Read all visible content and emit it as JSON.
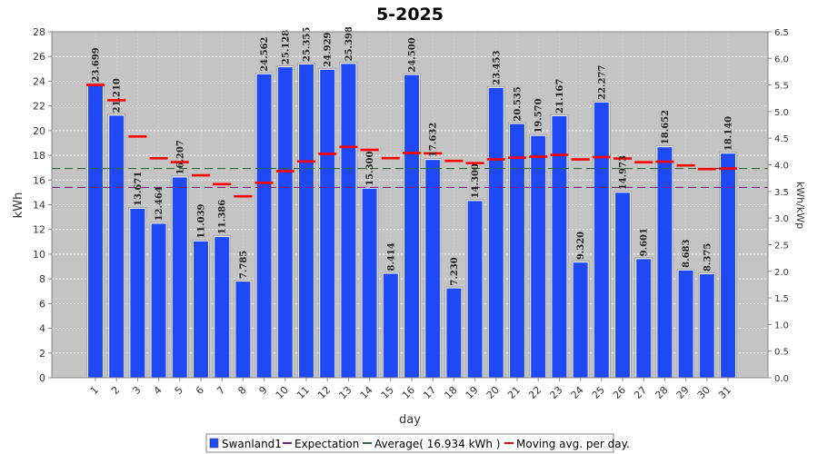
{
  "chart_data": {
    "type": "bar",
    "title": "5-2025",
    "xlabel": "day",
    "ylabel": "kWh",
    "y2label": "kWh/kWp",
    "ylim": [
      0,
      28
    ],
    "y_ticks": [
      0,
      2,
      4,
      6,
      8,
      10,
      12,
      14,
      16,
      18,
      20,
      22,
      24,
      26,
      28
    ],
    "y2lim": [
      0,
      6.5
    ],
    "y2_ticks": [
      "0.0",
      "0.5",
      "1.0",
      "1.5",
      "2.0",
      "2.5",
      "3.0",
      "3.5",
      "4.0",
      "4.5",
      "5.0",
      "5.5",
      "6.0",
      "6.5"
    ],
    "grid": true,
    "legend_position": "bottom",
    "categories": [
      "1",
      "2",
      "3",
      "4",
      "5",
      "6",
      "7",
      "8",
      "9",
      "10",
      "11",
      "12",
      "13",
      "14",
      "15",
      "16",
      "17",
      "18",
      "19",
      "20",
      "21",
      "22",
      "23",
      "24",
      "25",
      "26",
      "27",
      "28",
      "29",
      "30",
      "31"
    ],
    "series": [
      {
        "name": "Swanland1",
        "type": "bar",
        "color": "#1f49f5",
        "values": [
          23.699,
          21.21,
          13.671,
          12.464,
          16.207,
          11.039,
          11.386,
          7.785,
          24.562,
          25.128,
          25.355,
          24.929,
          25.398,
          15.3,
          8.414,
          24.5,
          17.632,
          7.23,
          14.3,
          23.453,
          20.535,
          19.57,
          21.167,
          9.32,
          22.277,
          14.973,
          9.601,
          18.652,
          8.683,
          8.375,
          18.14
        ],
        "labels": [
          "23.699",
          "21.210",
          "13.671",
          "12.464",
          "16.207",
          "11.039",
          "11.386",
          "7.785",
          "24.562",
          "25.128",
          "25.355",
          "24.929",
          "25.398",
          "15.300",
          "8.414",
          "24.500",
          "17.632",
          "7.230",
          "14.300",
          "23.453",
          "20.535",
          "19.570",
          "21.167",
          "9.320",
          "22.277",
          "14.973",
          "9.601",
          "18.652",
          "8.683",
          "8.375",
          "18.140"
        ]
      },
      {
        "name": "Expectation",
        "type": "line",
        "color": "#7a1f7a",
        "value": 15.4
      },
      {
        "name": "Average( 16.934 kWh )",
        "type": "line",
        "color": "#2e6b3e",
        "value": 16.934
      },
      {
        "name": "Moving avg. per day.",
        "type": "marker",
        "color": "#ff0000",
        "values": [
          23.699,
          22.455,
          19.527,
          17.761,
          17.45,
          16.382,
          15.668,
          14.683,
          15.781,
          16.716,
          17.502,
          18.121,
          18.681,
          18.44,
          17.772,
          18.192,
          18.159,
          17.552,
          17.371,
          17.675,
          17.811,
          17.891,
          18.034,
          17.67,
          17.854,
          17.744,
          17.442,
          17.485,
          17.182,
          16.888,
          16.934
        ]
      }
    ]
  }
}
